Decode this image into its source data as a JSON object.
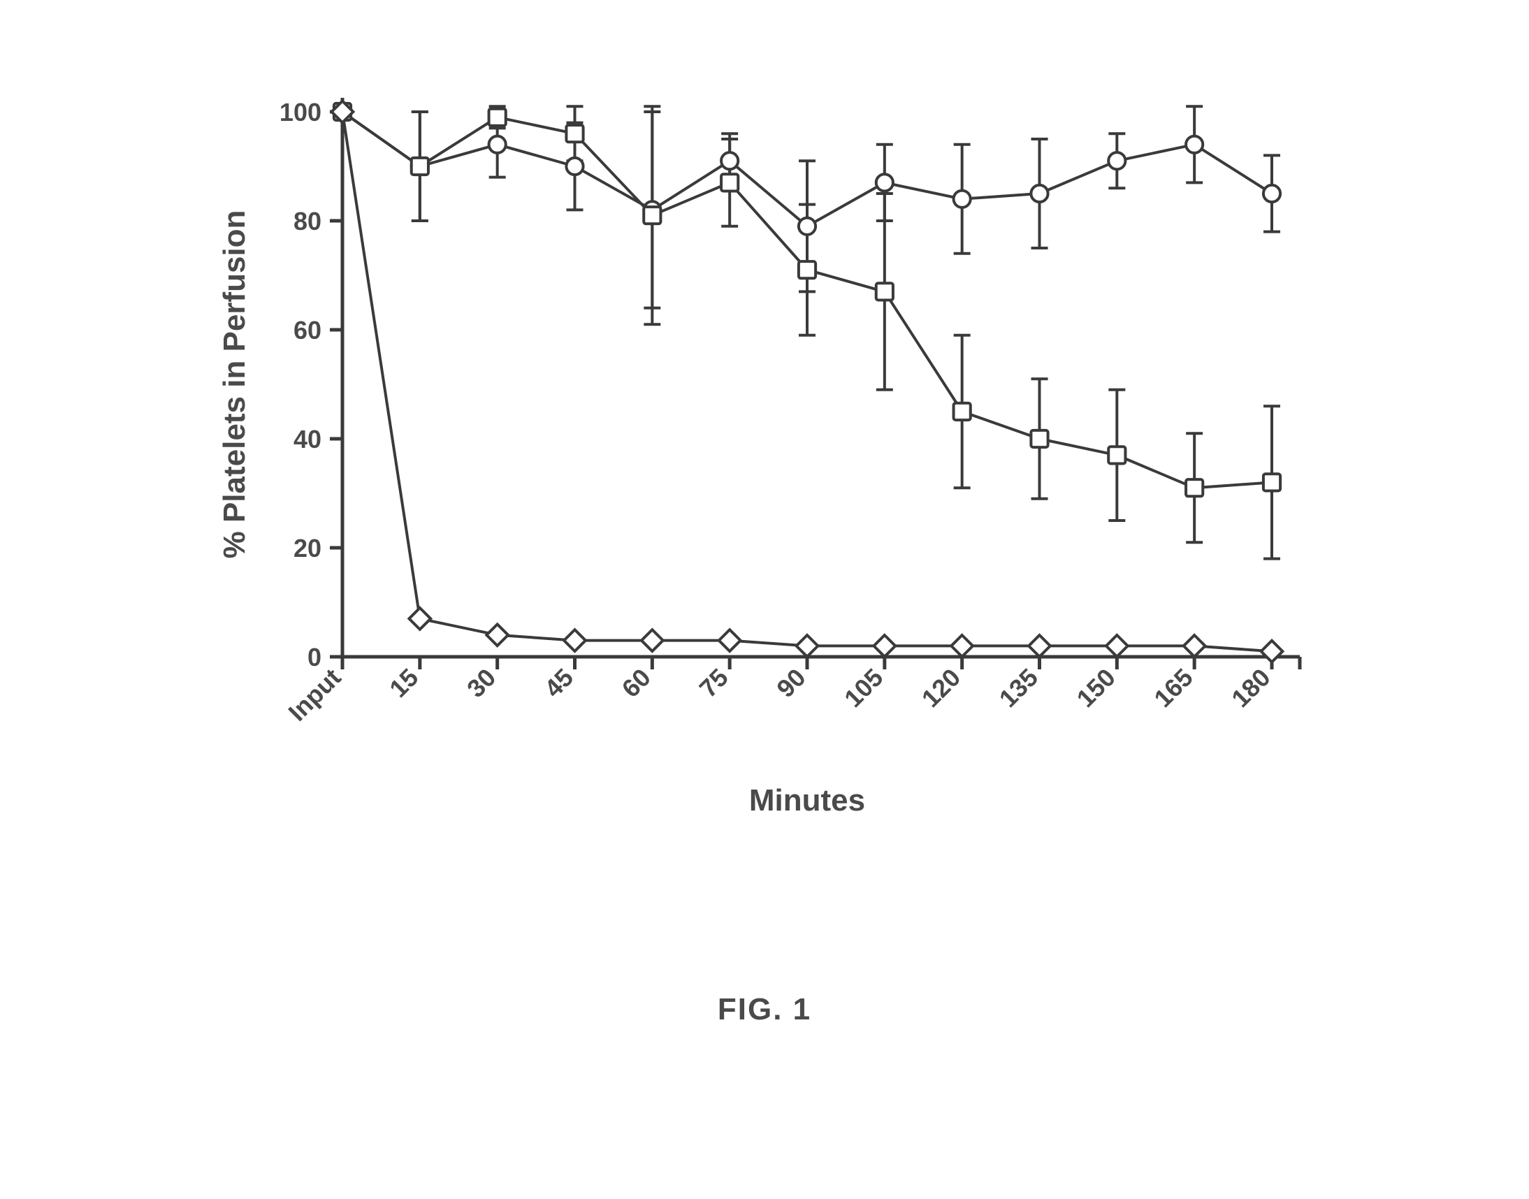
{
  "chart": {
    "type": "line",
    "x_categories": [
      "Input",
      "15",
      "30",
      "45",
      "60",
      "75",
      "90",
      "105",
      "120",
      "135",
      "150",
      "165",
      "180"
    ],
    "ylabel": "% Platelets in Perfusion",
    "xlabel": "Minutes",
    "ylim": [
      0,
      100
    ],
    "ytick_step": 20,
    "yticks": [
      0,
      20,
      40,
      60,
      80,
      100
    ],
    "background_color": "#ffffff",
    "axis_color": "#3a3a3a",
    "line_color": "#3a3a3a",
    "text_color": "#4a4a4a",
    "line_width": 4,
    "errorbar_width": 4,
    "errorcap_width": 24,
    "marker_size": 22,
    "marker_fill": "#ffffff",
    "marker_stroke": "#3a3a3a",
    "marker_stroke_width": 4,
    "tick_fontsize": 36,
    "label_fontsize": 44,
    "x_tick_rotation": -45,
    "series": [
      {
        "name": "Circle series",
        "marker": "circle",
        "y": [
          100,
          90,
          94,
          90,
          82,
          91,
          79,
          87,
          84,
          85,
          91,
          94,
          85
        ],
        "yerr": [
          0,
          10,
          6,
          8,
          18,
          5,
          12,
          7,
          10,
          10,
          5,
          7,
          7
        ]
      },
      {
        "name": "Square series",
        "marker": "square",
        "y": [
          100,
          90,
          99,
          96,
          81,
          87,
          71,
          67,
          45,
          40,
          37,
          31,
          32
        ],
        "yerr": [
          0,
          10,
          2,
          5,
          20,
          8,
          12,
          18,
          14,
          11,
          12,
          10,
          14
        ]
      },
      {
        "name": "Diamond series",
        "marker": "diamond",
        "y": [
          100,
          7,
          4,
          3,
          3,
          3,
          2,
          2,
          2,
          2,
          2,
          2,
          1
        ],
        "yerr": [
          0,
          0,
          0,
          0,
          0,
          0,
          0,
          0,
          0,
          0,
          0,
          0,
          0
        ]
      }
    ]
  },
  "caption": "FIG. 1"
}
